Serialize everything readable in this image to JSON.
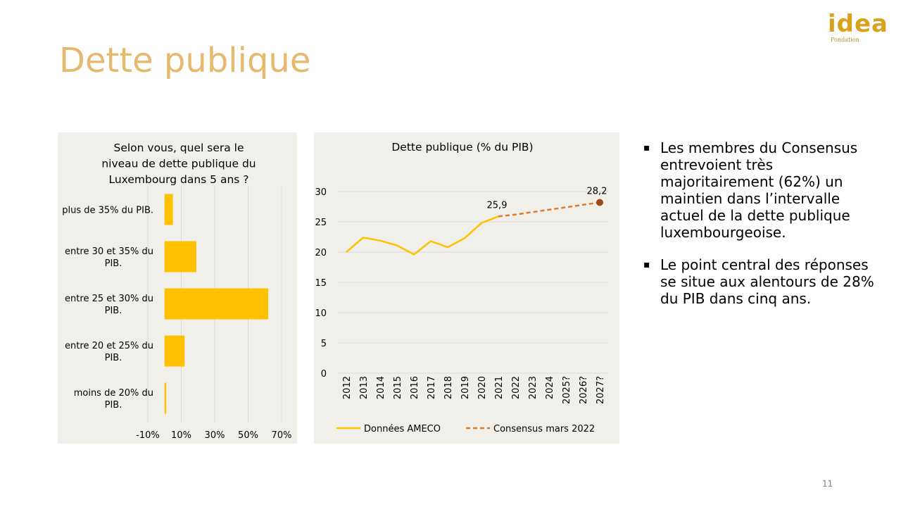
{
  "slide": {
    "title": "Dette publique",
    "page_number": "11"
  },
  "logo": {
    "text": "idea",
    "subtitle": "Fondation"
  },
  "bullets": [
    "Les membres du Consensus entrevoient très majoritairement (62%) un maintien dans l’intervalle actuel de la dette publique luxembourgeoise.",
    "Le point central des réponses se situe aux alentours de 28% du PIB dans cinq ans."
  ],
  "bullet_marker": "▪",
  "colors": {
    "title": "#e6b96e",
    "bar": "#ffc000",
    "line_actual": "#ffc000",
    "line_forecast": "#e0792b",
    "forecast_point": "#9e4a12",
    "panel_bg": "#f1efea"
  },
  "chart_data": [
    {
      "type": "bar",
      "orientation": "horizontal",
      "title_lines": [
        "Selon vous, quel sera le",
        "niveau de dette publique du",
        "Luxembourg dans 5 ans ?"
      ],
      "categories": [
        [
          "plus de 35% du PIB."
        ],
        [
          "entre 30 et 35% du",
          "PIB."
        ],
        [
          "entre 25 et 30% du",
          "PIB."
        ],
        [
          "entre 20 et 25% du",
          "PIB."
        ],
        [
          "moins de 20% du",
          "PIB."
        ]
      ],
      "values": [
        5,
        19,
        62,
        12,
        1
      ],
      "unit": "%",
      "xlim": [
        -10,
        70
      ],
      "xticks": [
        -10,
        10,
        30,
        50,
        70
      ],
      "xtick_labels": [
        "-10%",
        "10%",
        "30%",
        "50%",
        "70%"
      ],
      "grid": true
    },
    {
      "type": "line",
      "title": "Dette publique (% du PIB)",
      "categories": [
        "2012",
        "2013",
        "2014",
        "2015",
        "2016",
        "2017",
        "2018",
        "2019",
        "2020",
        "2021",
        "2022",
        "2023",
        "2024",
        "2025?",
        "2026?",
        "2027?"
      ],
      "ylim": [
        0,
        30
      ],
      "yticks": [
        0,
        5,
        10,
        15,
        20,
        25,
        30
      ],
      "series": [
        {
          "name": "Données AMECO",
          "values": [
            20.0,
            22.4,
            21.9,
            21.1,
            19.6,
            21.8,
            20.8,
            22.3,
            24.8,
            25.9,
            null,
            null,
            null,
            null,
            null,
            null
          ]
        },
        {
          "name": "Consensus mars 2022",
          "values": [
            null,
            null,
            null,
            null,
            null,
            null,
            null,
            null,
            null,
            25.9,
            26.2,
            26.6,
            27.0,
            27.4,
            27.8,
            28.2
          ]
        }
      ],
      "data_labels": [
        {
          "category": "2021",
          "text": "25,9"
        },
        {
          "category": "2027?",
          "text": "28,2"
        }
      ],
      "grid": true,
      "legend_position": "bottom"
    }
  ]
}
